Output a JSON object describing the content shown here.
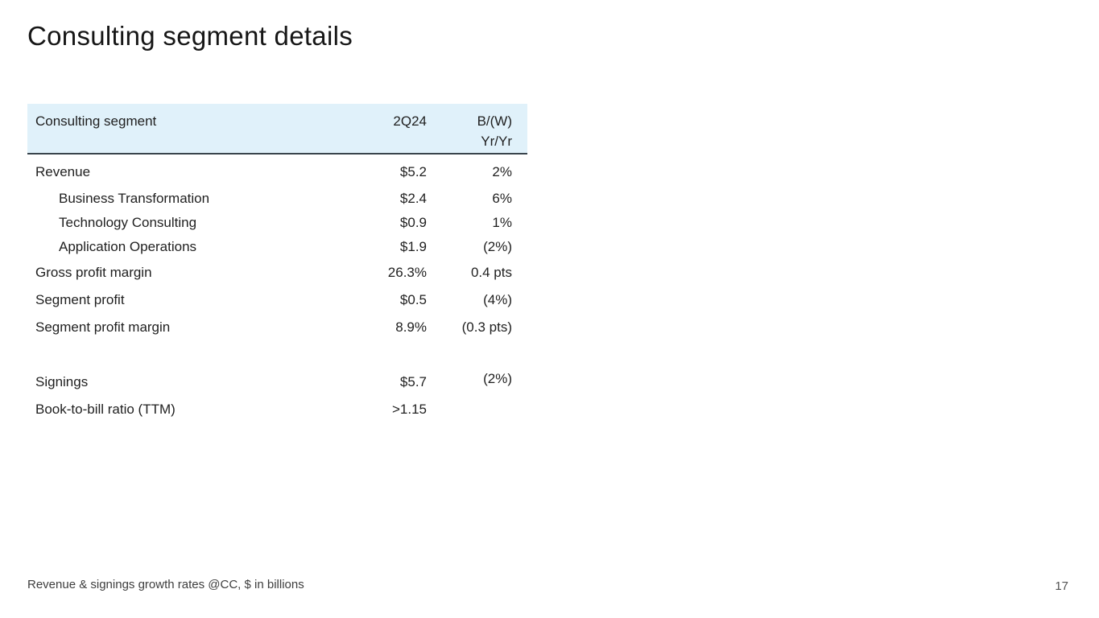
{
  "slide": {
    "title": "Consulting segment details",
    "footnote": "Revenue & signings growth rates @CC, $ in billions",
    "page_number": "17"
  },
  "table": {
    "header": {
      "col1": "Consulting segment",
      "col2": "2Q24",
      "col3_line1": "B/(W)",
      "col3_line2": "Yr/Yr"
    },
    "rows": [
      {
        "label": "Revenue",
        "value": "$5.2",
        "change": "2%",
        "indent": false
      },
      {
        "label": "Business Transformation",
        "value": "$2.4",
        "change": "6%",
        "indent": true
      },
      {
        "label": "Technology Consulting",
        "value": "$0.9",
        "change": "1%",
        "indent": true
      },
      {
        "label": "Application Operations",
        "value": "$1.9",
        "change": "(2%)",
        "indent": true
      },
      {
        "label": "Gross profit margin",
        "value": "26.3%",
        "change": "0.4 pts",
        "indent": false
      },
      {
        "label": "Segment profit",
        "value": "$0.5",
        "change": "(4%)",
        "indent": false
      },
      {
        "label": "Segment profit margin",
        "value": "8.9%",
        "change": "(0.3 pts)",
        "indent": false
      },
      {
        "label": "Signings",
        "value": "$5.7",
        "change": "(2%)",
        "indent": false
      },
      {
        "label": "Book-to-bill ratio (TTM)",
        "value": ">1.15",
        "change": "",
        "indent": false
      }
    ]
  },
  "colors": {
    "header_background": "#e0f1fa",
    "header_rule": "#39444c",
    "body_text": "#161616",
    "footnote_text": "#3d3d3d"
  }
}
